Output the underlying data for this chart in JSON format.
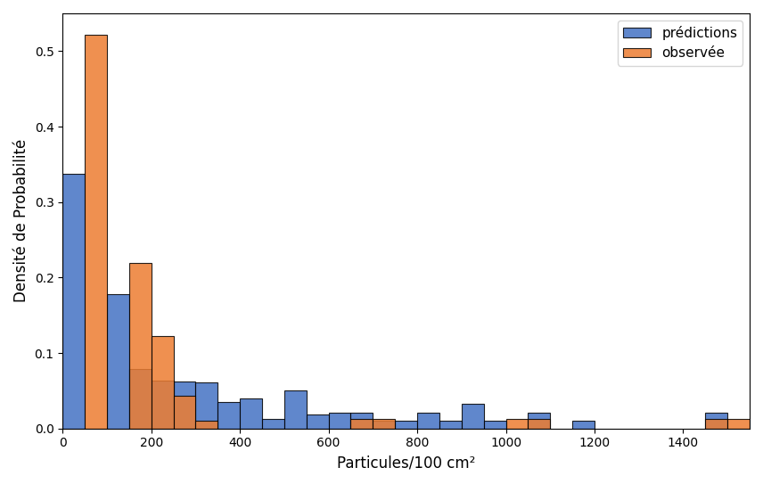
{
  "xlabel": "Particules/100 cm²",
  "ylabel": "Densité de Probabilité",
  "legend_labels": [
    "prédictions",
    "observée"
  ],
  "color_predictions": "#4472c4",
  "color_observed": "#ed7d31",
  "edgecolor": "black",
  "linewidth": 0.8,
  "alpha": 0.85,
  "bin_width": 50,
  "pred_bins": [
    0,
    100,
    150,
    200,
    250,
    300,
    350,
    400,
    450,
    500,
    550,
    600,
    650,
    700,
    750,
    800,
    850,
    900,
    950,
    1050,
    1150,
    1450
  ],
  "pred_heights": [
    0.338,
    0.178,
    0.079,
    0.064,
    0.062,
    0.061,
    0.035,
    0.04,
    0.013,
    0.051,
    0.019,
    0.021,
    0.021,
    0.01,
    0.01,
    0.021,
    0.01,
    0.033,
    0.01,
    0.021,
    0.01,
    0.021
  ],
  "obs_bins": [
    50,
    150,
    200,
    250,
    300,
    650,
    700,
    1000,
    1050,
    1450,
    1500
  ],
  "obs_heights": [
    0.522,
    0.219,
    0.123,
    0.043,
    0.01,
    0.013,
    0.013,
    0.013,
    0.013,
    0.013,
    0.013
  ],
  "xlim": [
    0,
    1550
  ],
  "ylim": [
    0,
    0.55
  ],
  "xticks": [
    0,
    200,
    400,
    600,
    800,
    1000,
    1200,
    1400
  ]
}
